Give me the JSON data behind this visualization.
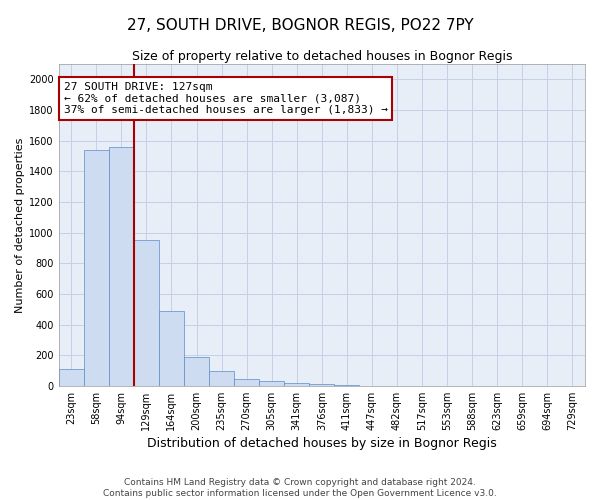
{
  "title1": "27, SOUTH DRIVE, BOGNOR REGIS, PO22 7PY",
  "title2": "Size of property relative to detached houses in Bognor Regis",
  "xlabel": "Distribution of detached houses by size in Bognor Regis",
  "ylabel": "Number of detached properties",
  "footer1": "Contains HM Land Registry data © Crown copyright and database right 2024.",
  "footer2": "Contains public sector information licensed under the Open Government Licence v3.0.",
  "annotation_title": "27 SOUTH DRIVE: 127sqm",
  "annotation_line1": "← 62% of detached houses are smaller (3,087)",
  "annotation_line2": "37% of semi-detached houses are larger (1,833) →",
  "bar_labels": [
    "23sqm",
    "58sqm",
    "94sqm",
    "129sqm",
    "164sqm",
    "200sqm",
    "235sqm",
    "270sqm",
    "305sqm",
    "341sqm",
    "376sqm",
    "411sqm",
    "447sqm",
    "482sqm",
    "517sqm",
    "553sqm",
    "588sqm",
    "623sqm",
    "659sqm",
    "694sqm",
    "729sqm"
  ],
  "bar_values": [
    110,
    1540,
    1560,
    950,
    490,
    185,
    95,
    45,
    30,
    20,
    10,
    5,
    2,
    1,
    1,
    0,
    0,
    0,
    0,
    0,
    0
  ],
  "bar_color": "#cddcf0",
  "bar_edge_color": "#5b8cc8",
  "vline_color": "#aa0000",
  "ylim": [
    0,
    2100
  ],
  "yticks": [
    0,
    200,
    400,
    600,
    800,
    1000,
    1200,
    1400,
    1600,
    1800,
    2000
  ],
  "grid_color": "#c8d0e8",
  "bg_color": "#e8eef8",
  "annotation_box_color": "#aa0000",
  "title1_fontsize": 11,
  "title2_fontsize": 9,
  "xlabel_fontsize": 9,
  "ylabel_fontsize": 8,
  "tick_fontsize": 7,
  "annotation_fontsize": 8,
  "footer_fontsize": 6.5
}
